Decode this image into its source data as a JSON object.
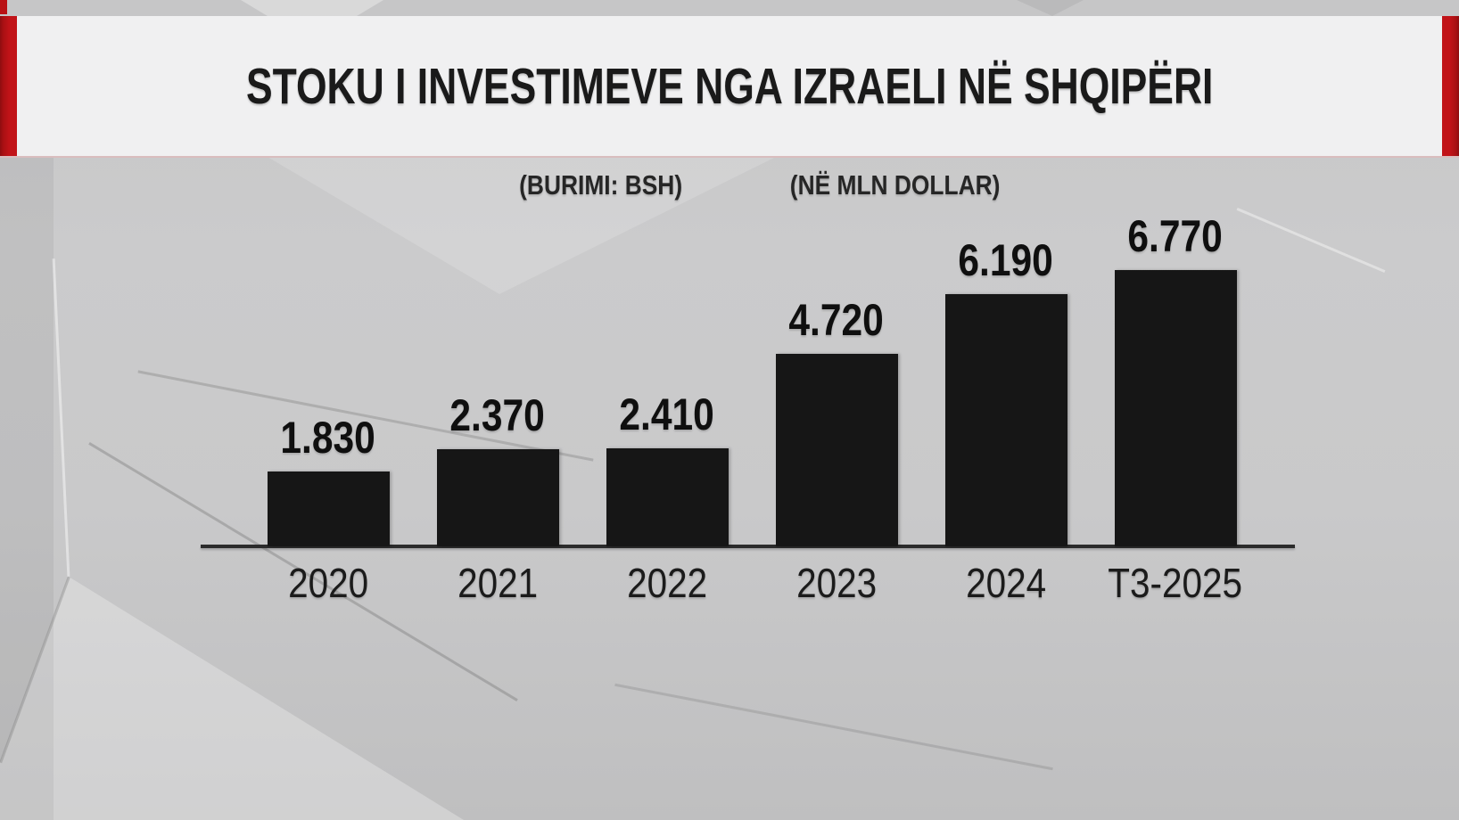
{
  "header": {
    "title": "STOKU I INVESTIMEVE NGA IZRAELI NË SHQIPËRI",
    "accent_color": "#c11318",
    "band_color": "#f0f0f1"
  },
  "subtitles": {
    "source": "(BURIMI: BSH)",
    "unit": "(NË MLN DOLLAR)"
  },
  "chart_data": {
    "type": "bar",
    "title": "STOKU I INVESTIMEVE NGA IZRAELI NË SHQIPËRI",
    "source_label": "(BURIMI: BSH)",
    "unit_label": "(NË MLN DOLLAR)",
    "categories": [
      "2020",
      "2021",
      "2022",
      "2023",
      "2024",
      "T3-2025"
    ],
    "values_mln": [
      1830,
      2370,
      2410,
      4720,
      6190,
      6770
    ],
    "value_labels": [
      "1.830",
      "2.370",
      "2.410",
      "4.720",
      "6.190",
      "6.770"
    ],
    "ylim": [
      0,
      7000
    ],
    "grid": false,
    "legend": "none",
    "bar_color": "#161616",
    "axis_color": "#2b2b2b",
    "background_color": "#c9c9ca"
  }
}
